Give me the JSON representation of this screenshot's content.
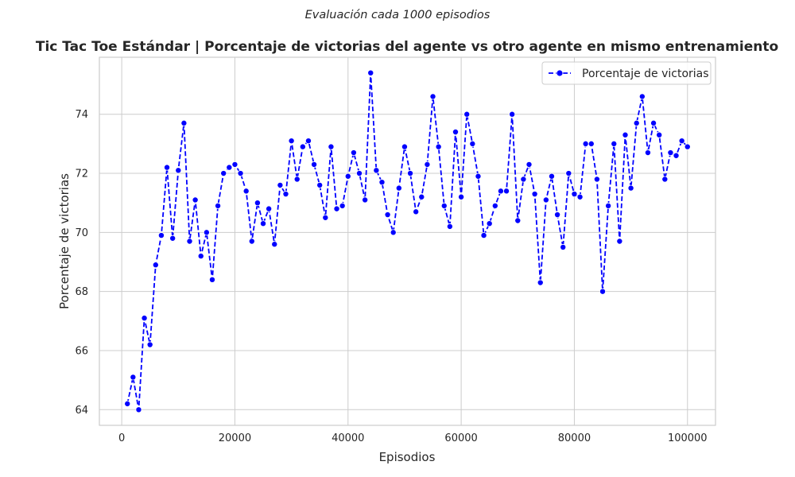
{
  "chart_data": {
    "type": "line",
    "suptitle": "Evaluación cada 1000 episodios",
    "title": "Tic Tac Toe Estándar | Porcentaje de victorias del agente vs otro agente en mismo entrenamiento",
    "xlabel": "Episodios",
    "ylabel": "Porcentaje de victorias",
    "xlim": [
      -3950,
      104950
    ],
    "ylim": [
      63.47,
      75.93
    ],
    "xticks": [
      0,
      20000,
      40000,
      60000,
      80000,
      100000
    ],
    "xtick_labels": [
      "0",
      "20000",
      "40000",
      "60000",
      "80000",
      "100000"
    ],
    "yticks": [
      64,
      66,
      68,
      70,
      72,
      74
    ],
    "ytick_labels": [
      "64",
      "66",
      "68",
      "70",
      "72",
      "74"
    ],
    "grid": true,
    "legend": "top-right",
    "series": [
      {
        "name": "Porcentaje de victorias",
        "color": "#0000ff",
        "line_style": "dashed",
        "marker": "circle",
        "x": [
          1000,
          2000,
          3000,
          4000,
          5000,
          6000,
          7000,
          8000,
          9000,
          10000,
          11000,
          12000,
          13000,
          14000,
          15000,
          16000,
          17000,
          18000,
          19000,
          20000,
          21000,
          22000,
          23000,
          24000,
          25000,
          26000,
          27000,
          28000,
          29000,
          30000,
          31000,
          32000,
          33000,
          34000,
          35000,
          36000,
          37000,
          38000,
          39000,
          40000,
          41000,
          42000,
          43000,
          44000,
          45000,
          46000,
          47000,
          48000,
          49000,
          50000,
          51000,
          52000,
          53000,
          54000,
          55000,
          56000,
          57000,
          58000,
          59000,
          60000,
          61000,
          62000,
          63000,
          64000,
          65000,
          66000,
          67000,
          68000,
          69000,
          70000,
          71000,
          72000,
          73000,
          74000,
          75000,
          76000,
          77000,
          78000,
          79000,
          80000,
          81000,
          82000,
          83000,
          84000,
          85000,
          86000,
          87000,
          88000,
          89000,
          90000,
          91000,
          92000,
          93000,
          94000,
          95000,
          96000,
          97000,
          98000,
          99000,
          100000
        ],
        "y": [
          64.2,
          65.1,
          64.0,
          67.1,
          66.2,
          68.9,
          69.9,
          72.2,
          69.8,
          72.1,
          73.7,
          69.7,
          71.1,
          69.2,
          70.0,
          68.4,
          70.9,
          72.0,
          72.2,
          72.3,
          72.0,
          71.4,
          69.7,
          71.0,
          70.3,
          70.8,
          69.6,
          71.6,
          71.3,
          73.1,
          71.8,
          72.9,
          73.1,
          72.3,
          71.6,
          70.5,
          72.9,
          70.8,
          70.9,
          71.9,
          72.7,
          72.0,
          71.1,
          75.4,
          72.1,
          71.7,
          70.6,
          70.0,
          71.5,
          72.9,
          72.0,
          70.7,
          71.2,
          72.3,
          74.6,
          72.9,
          70.9,
          70.2,
          73.4,
          71.2,
          74.0,
          73.0,
          71.9,
          69.9,
          70.3,
          70.9,
          71.4,
          71.4,
          74.0,
          70.4,
          71.8,
          72.3,
          71.3,
          68.3,
          71.1,
          71.9,
          70.6,
          69.5,
          72.0,
          71.3,
          71.2,
          73.0,
          73.0,
          71.8,
          68.0,
          70.9,
          73.0,
          69.7,
          73.3,
          71.5,
          73.7,
          74.6,
          72.7,
          73.7,
          73.3,
          71.8,
          72.7,
          72.6,
          73.1,
          72.9
        ]
      }
    ]
  },
  "colors": {
    "axes_edge": "#cccccc",
    "grid": "#cccccc",
    "text": "#262626",
    "line": "#0000ff"
  }
}
